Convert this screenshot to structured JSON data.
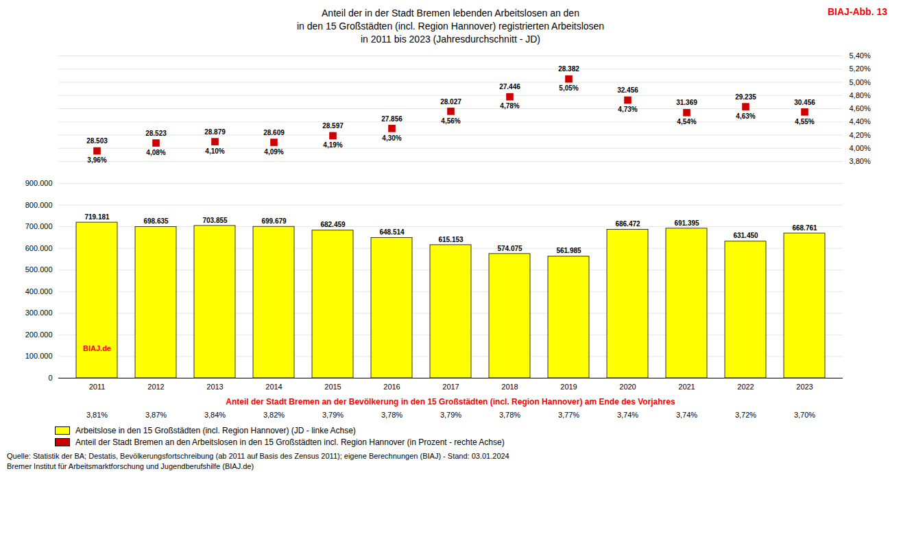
{
  "chart_data": {
    "type": "bar",
    "title": [
      "Anteil der in der Stadt Bremen lebenden Arbeitslosen an den",
      "in den 15 Großstädten (incl. Region Hannover) registrierten Arbeitslosen",
      "in 2011 bis 2023 (Jahresdurchschnitt - JD)"
    ],
    "annotations": [
      {
        "text": "BIAJ-Abb. 13",
        "color": "red"
      },
      {
        "text": "BIAJ.de",
        "x": 2011,
        "color": "red"
      }
    ],
    "categories": [
      2011,
      2012,
      2013,
      2014,
      2015,
      2016,
      2017,
      2018,
      2019,
      2020,
      2021,
      2022,
      2023
    ],
    "series": [
      {
        "name": "Arbeitslose in den 15 Großstädten (incl. Region Hannover) (JD - linke Achse)",
        "type": "bar",
        "color": "#FFFF00",
        "values": [
          719181,
          698635,
          703855,
          699679,
          682459,
          648514,
          615153,
          574075,
          561985,
          686472,
          691395,
          631450,
          668761
        ],
        "value_labels": [
          "719.181",
          "698.635",
          "703.855",
          "699.679",
          "682.459",
          "648.514",
          "615.153",
          "574.075",
          "561.985",
          "686.472",
          "691.395",
          "631.450",
          "668.761"
        ]
      },
      {
        "name": "Anteil der Stadt Bremen an den Arbeitslosen in den 15 Großstädten incl. Region Hannover (in Prozent - rechte Achse)",
        "type": "scatter",
        "marker": "square",
        "color": "#CC0000",
        "axis": "y2",
        "values": [
          3.96,
          4.08,
          4.1,
          4.09,
          4.19,
          4.3,
          4.56,
          4.78,
          5.05,
          4.73,
          4.54,
          4.63,
          4.55
        ],
        "value_labels": [
          "3,96%",
          "4,08%",
          "4,10%",
          "4,09%",
          "4,19%",
          "4,30%",
          "4,56%",
          "4,78%",
          "5,05%",
          "4,73%",
          "4,54%",
          "4,63%",
          "4,55%"
        ],
        "count_labels": [
          "28.503",
          "28.523",
          "28.879",
          "28.609",
          "28.597",
          "27.856",
          "28.027",
          "27.446",
          "28.382",
          "32.456",
          "31.369",
          "29.235",
          "30.456"
        ]
      }
    ],
    "ylim": [
      0,
      900000
    ],
    "yticks": [
      0,
      {
        "value": 100000,
        "label": "100.000"
      },
      {
        "value": 200000,
        "label": "200.000"
      },
      {
        "value": 300000,
        "label": "300.000"
      },
      {
        "value": 400000,
        "label": "400.000"
      },
      {
        "value": 500000,
        "label": "500.000"
      },
      {
        "value": 600000,
        "label": "600.000"
      },
      {
        "value": 700000,
        "label": "700.000"
      },
      {
        "value": 800000,
        "label": "800.000"
      },
      {
        "value": 900000,
        "label": "900.000"
      }
    ],
    "y2lim": [
      3.8,
      5.4
    ],
    "y2ticks": [
      {
        "value": 3.8,
        "label": "3,80%"
      },
      {
        "value": 4.0,
        "label": "4,00%"
      },
      {
        "value": 4.2,
        "label": "4,20%"
      },
      {
        "value": 4.4,
        "label": "4,40%"
      },
      {
        "value": 4.6,
        "label": "4,60%"
      },
      {
        "value": 4.8,
        "label": "4,80%"
      },
      {
        "value": 5.0,
        "label": "5,00%"
      },
      {
        "value": 5.2,
        "label": "5,20%"
      },
      {
        "value": 5.4,
        "label": "5,40%"
      }
    ],
    "grid": true,
    "data_labels": true,
    "xlabel": "Anteil der Stadt Bremen an der Bevölkerung in den 15 Großstädten (incl. Region Hannover) am Ende des Vorjahres",
    "population_shares": [
      "3,81%",
      "3,87%",
      "3,84%",
      "3,82%",
      "3,79%",
      "3,78%",
      "3,79%",
      "3,78%",
      "3,77%",
      "3,74%",
      "3,74%",
      "3,72%",
      "3,70%"
    ],
    "source": [
      "Quelle: Statistik der BA; Destatis, Bevölkerungsfortschreibung (ab 2011 auf Basis des Zensus 2011); eigene Berechnungen (BIAJ) - Stand: 03.01.2024",
      "Bremer Institut für Arbeitsmarktforschung und Jugendberufshilfe (BIAJ.de)"
    ]
  }
}
